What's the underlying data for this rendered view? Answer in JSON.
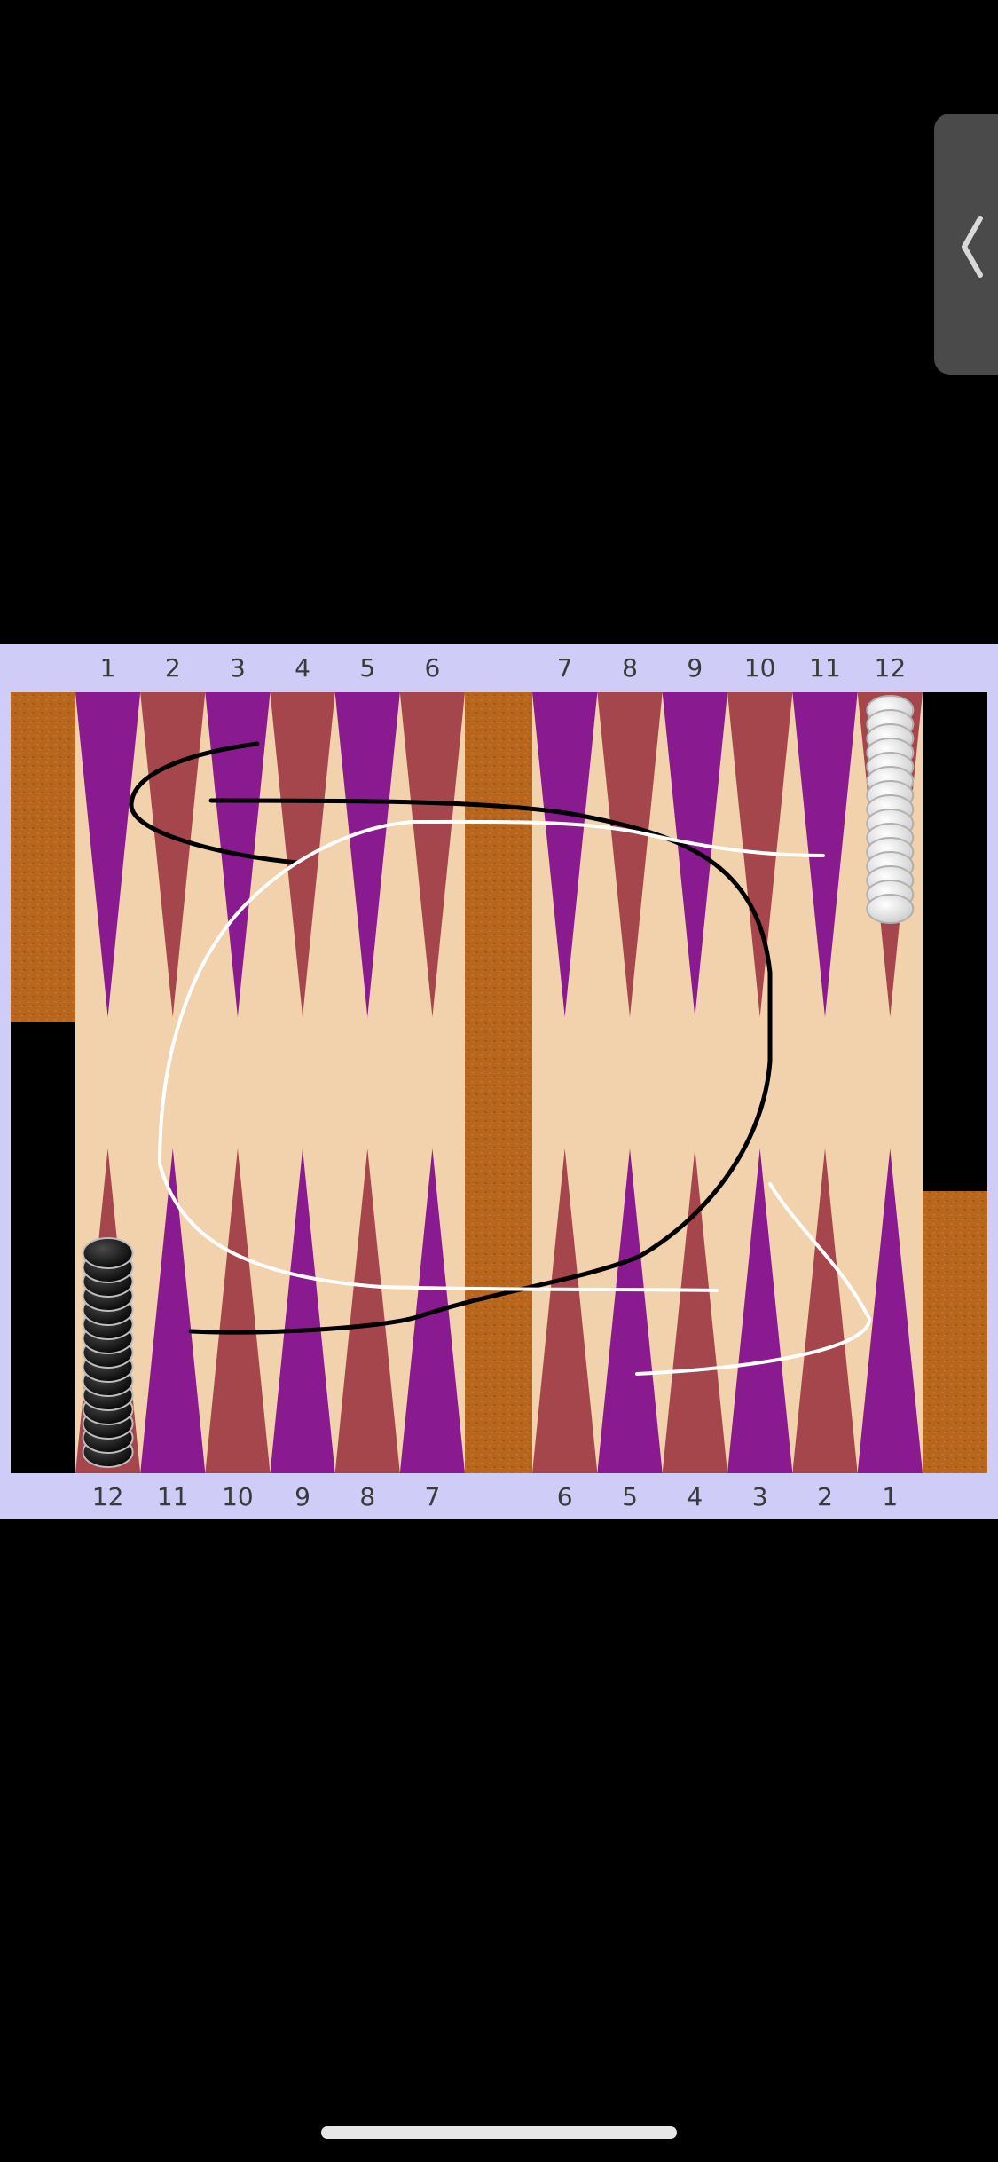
{
  "board": {
    "top_point_numbers": [
      "1",
      "2",
      "3",
      "4",
      "5",
      "6",
      "7",
      "8",
      "9",
      "10",
      "11",
      "12"
    ],
    "bottom_point_numbers": [
      "12",
      "11",
      "10",
      "9",
      "8",
      "7",
      "6",
      "5",
      "4",
      "3",
      "2",
      "1"
    ],
    "colors": {
      "frame": "#cfcdf8",
      "field": "#f1d2ad",
      "purple_point": "#8a1a90",
      "red_point": "#a5454c",
      "bar": "#b8661e",
      "tray_wood": "#b8661e",
      "tray_black": "#000000",
      "label": "#3a3a3a",
      "white_checker": "#f4f4f4",
      "black_checker": "#1a1a1a",
      "stroke_black": "#000000",
      "stroke_white": "#ffffff"
    },
    "white_stack": {
      "point": "12",
      "row": "top",
      "count": 15
    },
    "black_stack": {
      "point": "12",
      "row": "bottom",
      "count": 15
    }
  },
  "side_tab": {
    "icon": "chevron-left-icon"
  },
  "home_indicator": {
    "icon": "home-bar"
  }
}
